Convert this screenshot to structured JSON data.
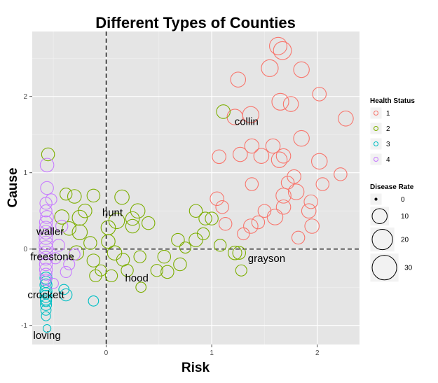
{
  "chart_data": {
    "type": "scatter",
    "title": "Different Types of Counties",
    "xlabel": "Risk",
    "ylabel": "Cause",
    "xlim": [
      -0.7,
      2.4
    ],
    "ylim": [
      -1.25,
      2.85
    ],
    "x_ticks": [
      0,
      1,
      2
    ],
    "y_ticks": [
      -1,
      0,
      1,
      2
    ],
    "x_tick_labels": [
      "0",
      "1",
      "2"
    ],
    "y_tick_labels": [
      "-1",
      "0",
      "1",
      "2"
    ],
    "grid": true,
    "reference_lines": {
      "x": 0,
      "y": 0
    },
    "colors": {
      "1": "#F8766D",
      "2": "#7CAE00",
      "3": "#00BFC4",
      "4": "#C77CFF"
    },
    "legend": {
      "placement": "right",
      "color_title": "Health Status",
      "color_entries": [
        "1",
        "2",
        "3",
        "4"
      ],
      "size_title": "Disease Rate",
      "size_entries": [
        0,
        10,
        20,
        30
      ]
    },
    "annotations": [
      {
        "text": "collin",
        "x": 1.33,
        "y": 1.67
      },
      {
        "text": "hunt",
        "x": 0.06,
        "y": 0.48
      },
      {
        "text": "waller",
        "x": -0.53,
        "y": 0.23
      },
      {
        "text": "freestone",
        "x": -0.51,
        "y": -0.1
      },
      {
        "text": "grayson",
        "x": 1.52,
        "y": -0.12
      },
      {
        "text": "hood",
        "x": 0.29,
        "y": -0.38
      },
      {
        "text": "crockett",
        "x": -0.57,
        "y": -0.6
      },
      {
        "text": "loving",
        "x": -0.56,
        "y": -1.13
      }
    ],
    "series": [
      {
        "name": "1",
        "points": [
          [
            1.63,
            2.66,
            14
          ],
          [
            1.67,
            2.6,
            15
          ],
          [
            1.55,
            2.37,
            13
          ],
          [
            1.85,
            2.35,
            11
          ],
          [
            1.25,
            2.22,
            10
          ],
          [
            2.02,
            2.03,
            8
          ],
          [
            1.65,
            1.93,
            13
          ],
          [
            1.75,
            1.9,
            10
          ],
          [
            1.22,
            1.73,
            11
          ],
          [
            1.37,
            1.76,
            12
          ],
          [
            2.27,
            1.71,
            10
          ],
          [
            1.85,
            1.45,
            11
          ],
          [
            1.38,
            1.35,
            9
          ],
          [
            1.58,
            1.35,
            9
          ],
          [
            1.64,
            1.17,
            11
          ],
          [
            1.47,
            1.22,
            10
          ],
          [
            1.27,
            1.24,
            9
          ],
          [
            1.68,
            1.22,
            9
          ],
          [
            2.02,
            1.15,
            11
          ],
          [
            1.07,
            1.21,
            8
          ],
          [
            1.78,
            0.95,
            8
          ],
          [
            1.72,
            0.87,
            7
          ],
          [
            2.05,
            0.85,
            7
          ],
          [
            1.38,
            0.85,
            7
          ],
          [
            1.8,
            0.75,
            11
          ],
          [
            2.22,
            0.98,
            7
          ],
          [
            1.05,
            0.66,
            8
          ],
          [
            1.68,
            0.7,
            10
          ],
          [
            1.92,
            0.5,
            9
          ],
          [
            1.5,
            0.5,
            7
          ],
          [
            1.94,
            0.62,
            8
          ],
          [
            1.6,
            0.42,
            11
          ],
          [
            1.13,
            0.33,
            7
          ],
          [
            1.44,
            0.35,
            7
          ],
          [
            1.37,
            0.3,
            9
          ],
          [
            1.95,
            0.3,
            9
          ],
          [
            1.82,
            0.15,
            7
          ],
          [
            1.3,
            0.2,
            6
          ],
          [
            1.68,
            0.55,
            9
          ],
          [
            1.1,
            0.55,
            7
          ]
        ]
      },
      {
        "name": "2",
        "points": [
          [
            1.11,
            1.8,
            8
          ],
          [
            -0.55,
            1.24,
            7
          ],
          [
            -0.38,
            0.72,
            6
          ],
          [
            -0.3,
            0.69,
            8
          ],
          [
            -0.2,
            0.5,
            8
          ],
          [
            -0.25,
            0.41,
            10
          ],
          [
            -0.12,
            0.7,
            7
          ],
          [
            0.15,
            0.68,
            9
          ],
          [
            0.3,
            0.5,
            9
          ],
          [
            -0.42,
            0.42,
            9
          ],
          [
            0.1,
            0.37,
            11
          ],
          [
            0.25,
            0.4,
            8
          ],
          [
            0.4,
            0.34,
            7
          ],
          [
            -0.35,
            0.27,
            8
          ],
          [
            -0.25,
            0.22,
            10
          ],
          [
            0.02,
            0.28,
            9
          ],
          [
            0.25,
            0.3,
            8
          ],
          [
            0.02,
            0.1,
            8
          ],
          [
            -0.15,
            0.08,
            7
          ],
          [
            -0.28,
            -0.05,
            9
          ],
          [
            -0.12,
            -0.15,
            7
          ],
          [
            0.08,
            -0.05,
            9
          ],
          [
            0.32,
            -0.1,
            6
          ],
          [
            0.68,
            0.12,
            7
          ],
          [
            0.85,
            0.12,
            8
          ],
          [
            1.08,
            0.05,
            6
          ],
          [
            0.75,
            0.02,
            5
          ],
          [
            0.92,
            0.2,
            6
          ],
          [
            1.0,
            0.4,
            7
          ],
          [
            0.85,
            0.5,
            7
          ],
          [
            1.22,
            -0.05,
            8
          ],
          [
            1.28,
            -0.28,
            5
          ],
          [
            0.55,
            -0.1,
            7
          ],
          [
            0.7,
            -0.2,
            7
          ],
          [
            0.58,
            -0.3,
            7
          ],
          [
            0.48,
            -0.28,
            6
          ],
          [
            0.2,
            -0.28,
            6
          ],
          [
            0.33,
            -0.5,
            4
          ],
          [
            -0.1,
            -0.35,
            6
          ],
          [
            0.05,
            -0.35,
            6
          ],
          [
            0.16,
            -0.14,
            7
          ],
          [
            -0.05,
            -0.28,
            5
          ],
          [
            1.26,
            -0.05,
            7
          ],
          [
            0.94,
            0.4,
            7
          ]
        ]
      },
      {
        "name": "3",
        "points": [
          [
            -0.57,
            -0.38,
            6
          ],
          [
            -0.57,
            -0.47,
            6
          ],
          [
            -0.57,
            -0.55,
            6
          ],
          [
            -0.57,
            -0.62,
            6
          ],
          [
            -0.57,
            -0.68,
            5
          ],
          [
            -0.57,
            -0.73,
            5
          ],
          [
            -0.57,
            -0.8,
            4
          ],
          [
            -0.57,
            -0.88,
            3
          ],
          [
            -0.38,
            -0.6,
            6
          ],
          [
            -0.12,
            -0.68,
            4
          ],
          [
            -0.4,
            -0.53,
            4
          ],
          [
            -0.56,
            -1.04,
            2
          ],
          [
            -0.57,
            -0.43,
            5
          ],
          [
            -0.57,
            -0.58,
            5
          ],
          [
            -0.57,
            -0.66,
            5
          ]
        ]
      },
      {
        "name": "4",
        "points": [
          [
            -0.56,
            1.1,
            8
          ],
          [
            -0.56,
            0.8,
            7
          ],
          [
            -0.57,
            0.6,
            6
          ],
          [
            -0.57,
            0.5,
            6
          ],
          [
            -0.56,
            0.42,
            7
          ],
          [
            -0.57,
            0.35,
            7
          ],
          [
            -0.57,
            0.28,
            7
          ],
          [
            -0.57,
            0.22,
            8
          ],
          [
            -0.57,
            0.15,
            8
          ],
          [
            -0.57,
            0.08,
            8
          ],
          [
            -0.57,
            0.02,
            8
          ],
          [
            -0.57,
            -0.05,
            8
          ],
          [
            -0.57,
            -0.12,
            8
          ],
          [
            -0.57,
            -0.2,
            7
          ],
          [
            -0.57,
            -0.27,
            7
          ],
          [
            -0.57,
            -0.33,
            6
          ],
          [
            -0.57,
            -0.4,
            5
          ],
          [
            -0.48,
            -0.12,
            5
          ],
          [
            -0.45,
            0.05,
            6
          ],
          [
            -0.38,
            -0.3,
            5
          ],
          [
            -0.35,
            -0.2,
            5
          ],
          [
            -0.42,
            0.3,
            6
          ],
          [
            -0.3,
            -0.07,
            5
          ],
          [
            -0.5,
            -0.45,
            4
          ],
          [
            -0.52,
            0.65,
            5
          ]
        ]
      }
    ]
  }
}
